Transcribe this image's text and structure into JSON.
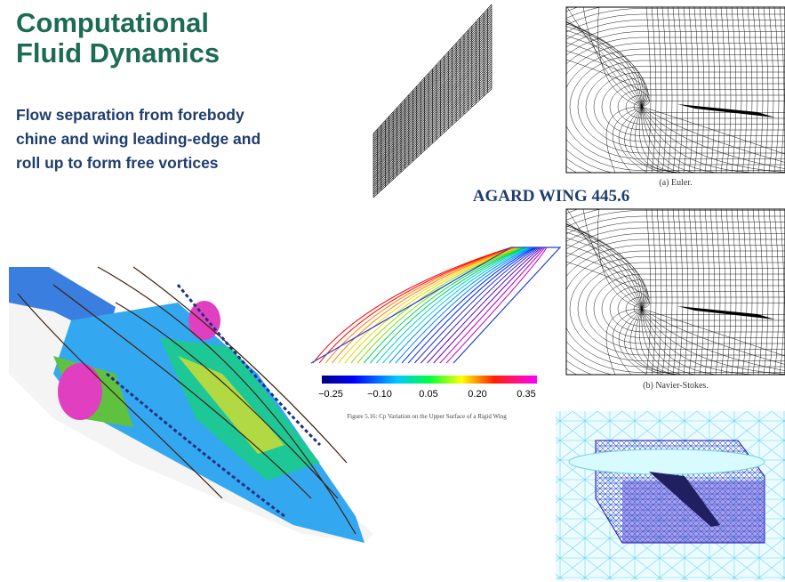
{
  "header": {
    "title_lines": [
      "Computational",
      "Fluid Dynamics"
    ],
    "subtitle_lines": [
      "Flow separation from forebody",
      "chine and wing leading-edge and",
      "roll up to form free vortices"
    ]
  },
  "figures": {
    "agard_label": "AGARD WING 445.6",
    "euler_caption": "(a) Euler.",
    "navier_stokes_caption": "(b) Navier-Stokes.",
    "colorbar_ticks": [
      "−0.25",
      "−0.10",
      "0.05",
      "0.20",
      "0.35"
    ],
    "contour_caption": "Figure 5.16: Cp Variation on the Upper Surface of a Rigid Wing"
  }
}
